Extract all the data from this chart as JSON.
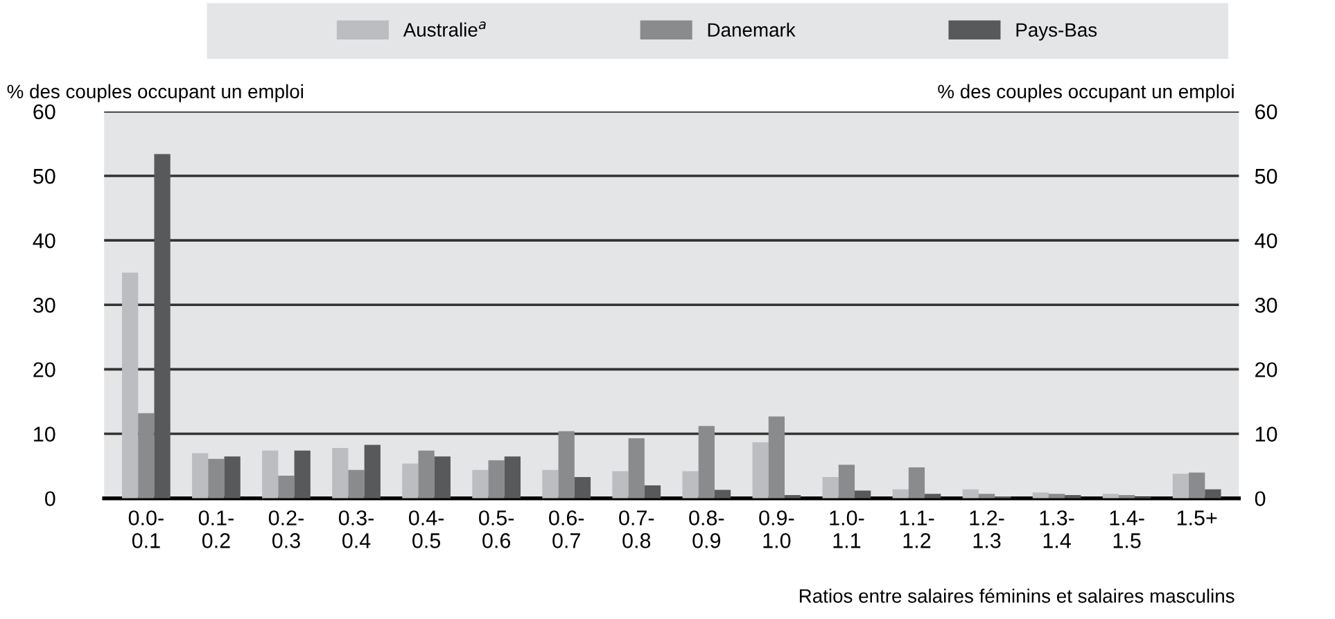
{
  "chart_data": {
    "type": "bar",
    "categories": [
      "0.0-\n0.1",
      "0.1-\n0.2",
      "0.2-\n0.3",
      "0.3-\n0.4",
      "0.4-\n0.5",
      "0.5-\n0.6",
      "0.6-\n0.7",
      "0.7-\n0.8",
      "0.8-\n0.9",
      "0.9-\n1.0",
      "1.0-\n1.1",
      "1.1-\n1.2",
      "1.2-\n1.3",
      "1.3-\n1.4",
      "1.4-\n1.5",
      "1.5+"
    ],
    "series": [
      {
        "name": "Australie$^{a}$",
        "color": "#bcbdc0",
        "values": [
          35,
          7.0,
          7.4,
          7.8,
          5.4,
          4.4,
          4.4,
          4.2,
          4.2,
          8.7,
          3.3,
          1.4,
          1.4,
          0.9,
          0.7,
          3.8
        ]
      },
      {
        "name": "Danemark",
        "color": "#8a8b8d",
        "values": [
          13.2,
          6.1,
          3.5,
          4.4,
          7.4,
          5.9,
          10.4,
          9.3,
          11.2,
          12.7,
          5.2,
          4.8,
          0.7,
          0.7,
          0.5,
          4.0
        ]
      },
      {
        "name": "Pays-Bas",
        "color": "#58595b",
        "values": [
          53.4,
          6.5,
          7.4,
          8.3,
          6.5,
          6.5,
          3.3,
          2.0,
          1.3,
          0.5,
          1.2,
          0.7,
          0.3,
          0.5,
          0.2,
          1.4
        ]
      }
    ],
    "ylabel": "% des couples occupant un emploi",
    "y2label": "% des couples occupant un emploi",
    "xlabel": "Ratios entre salaires féminins et salaires masculins",
    "ylim": [
      0,
      60
    ],
    "yticks": [
      0,
      10,
      20,
      30,
      40,
      50,
      60
    ],
    "y2lim": [
      0,
      60
    ],
    "y2ticks": [
      0,
      10,
      20,
      30,
      40,
      50,
      60
    ],
    "grid": "y",
    "legend": "top"
  }
}
